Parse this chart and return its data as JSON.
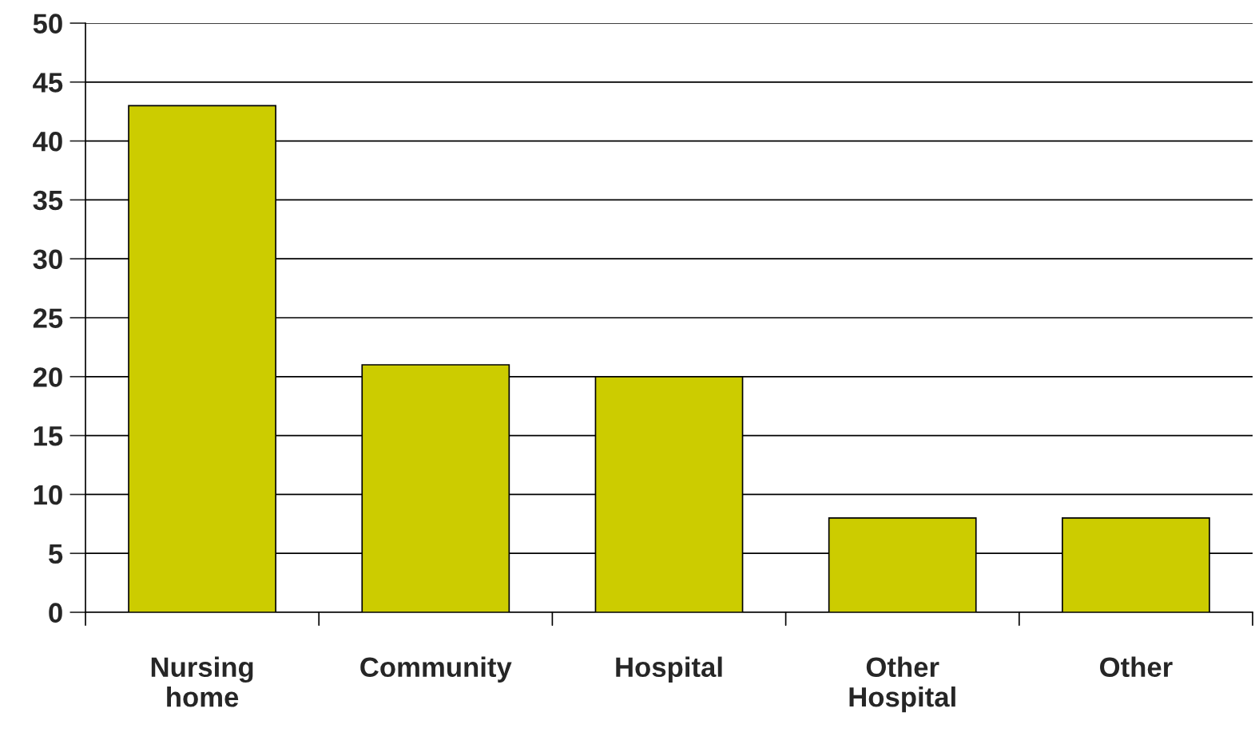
{
  "chart_data": {
    "type": "bar",
    "categories": [
      "Nursing home",
      "Community",
      "Hospital",
      "Other Hospital",
      "Other"
    ],
    "values": [
      43,
      21,
      20,
      8,
      8
    ],
    "color": "#cccc00",
    "ylim": [
      0,
      50
    ],
    "yticks": [
      0,
      5,
      10,
      15,
      20,
      25,
      30,
      35,
      40,
      45,
      50
    ],
    "grid": "y",
    "legend": false
  }
}
